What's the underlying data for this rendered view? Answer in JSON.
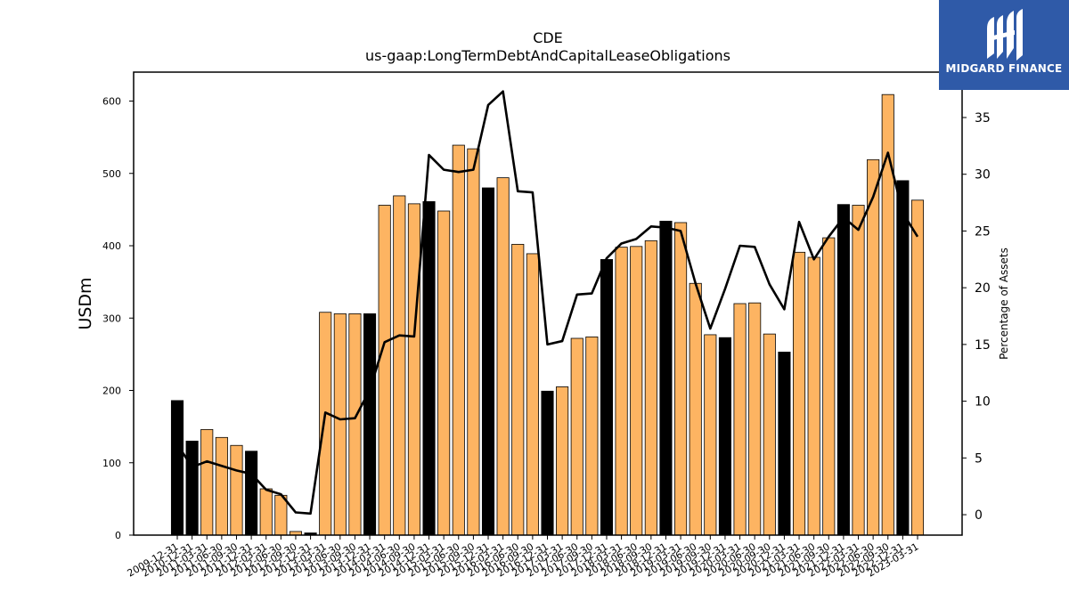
{
  "chart_data": {
    "type": "bar",
    "title": "CDE",
    "subtitle": "us-gaap:LongTermDebtAndCapitalLeaseObligations",
    "ylabel": "USDm",
    "y2label": "Percentage of Assets",
    "ylim": [
      0,
      640
    ],
    "y2lim": [
      -1.8,
      39
    ],
    "yticks": [
      0,
      100,
      200,
      300,
      400,
      500,
      600
    ],
    "y2ticks": [
      0,
      5,
      10,
      15,
      20,
      25,
      30,
      35
    ],
    "grid": false,
    "legend": "none",
    "categories": [
      "2009-12-31",
      "2010-12-31",
      "2011-03-31",
      "2011-06-30",
      "2011-09-30",
      "2011-12-31",
      "2012-03-31",
      "2012-06-30",
      "2012-09-30",
      "2012-12-31",
      "2013-03-31",
      "2013-06-30",
      "2013-09-30",
      "2013-12-31",
      "2014-03-31",
      "2014-06-30",
      "2014-09-30",
      "2014-12-31",
      "2015-03-31",
      "2015-06-30",
      "2015-09-30",
      "2015-12-31",
      "2016-03-31",
      "2016-06-30",
      "2016-09-30",
      "2016-12-31",
      "2017-03-31",
      "2017-06-30",
      "2017-09-30",
      "2017-12-31",
      "2018-03-31",
      "2018-06-30",
      "2018-09-30",
      "2018-12-31",
      "2019-03-31",
      "2019-06-30",
      "2019-09-30",
      "2019-12-31",
      "2020-03-31",
      "2020-06-30",
      "2020-09-30",
      "2020-12-31",
      "2021-03-31",
      "2021-06-30",
      "2021-09-30",
      "2021-12-31",
      "2022-03-31",
      "2022-06-30",
      "2022-09-30",
      "2022-12-31",
      "2023-03-31"
    ],
    "series": [
      {
        "type": "bar",
        "axis": "left",
        "values": [
          186,
          130,
          146,
          135,
          124,
          116,
          64,
          55,
          5,
          3,
          308,
          306,
          306,
          306,
          456,
          469,
          458,
          461,
          448,
          539,
          534,
          480,
          494,
          402,
          389,
          199,
          205,
          272,
          274,
          381,
          398,
          399,
          407,
          434,
          432,
          348,
          277,
          273,
          320,
          321,
          278,
          253,
          391,
          384,
          411,
          457,
          456,
          519,
          609,
          490,
          463
        ],
        "annual": [
          true,
          true,
          false,
          false,
          false,
          true,
          false,
          false,
          false,
          true,
          false,
          false,
          false,
          true,
          false,
          false,
          false,
          true,
          false,
          false,
          false,
          true,
          false,
          false,
          false,
          true,
          false,
          false,
          false,
          true,
          false,
          false,
          false,
          true,
          false,
          false,
          false,
          true,
          false,
          false,
          false,
          true,
          false,
          false,
          false,
          true,
          false,
          false,
          false,
          true,
          false
        ]
      },
      {
        "type": "line",
        "axis": "right",
        "values": [
          6.2,
          4.2,
          4.7,
          4.3,
          3.9,
          3.6,
          2.2,
          1.8,
          0.2,
          0.1,
          9.0,
          8.4,
          8.5,
          11.0,
          15.2,
          15.8,
          15.7,
          31.7,
          30.4,
          30.2,
          30.4,
          36.1,
          37.3,
          28.5,
          28.4,
          15.0,
          15.3,
          19.4,
          19.5,
          22.6,
          23.9,
          24.3,
          25.4,
          25.3,
          25.0,
          20.4,
          16.4,
          19.9,
          23.7,
          23.6,
          20.3,
          18.1,
          25.8,
          22.5,
          24.5,
          26.2,
          25.1,
          28.0,
          31.9,
          26.6,
          24.5
        ]
      }
    ]
  },
  "colors": {
    "bar_quarterly": "#fdb462",
    "bar_annual": "#000000",
    "line": "#000000",
    "logo_background": "#2f5aa8"
  },
  "logo": {
    "text": "MIDGARD FINANCE",
    "icon": "midgard-logo-icon"
  }
}
